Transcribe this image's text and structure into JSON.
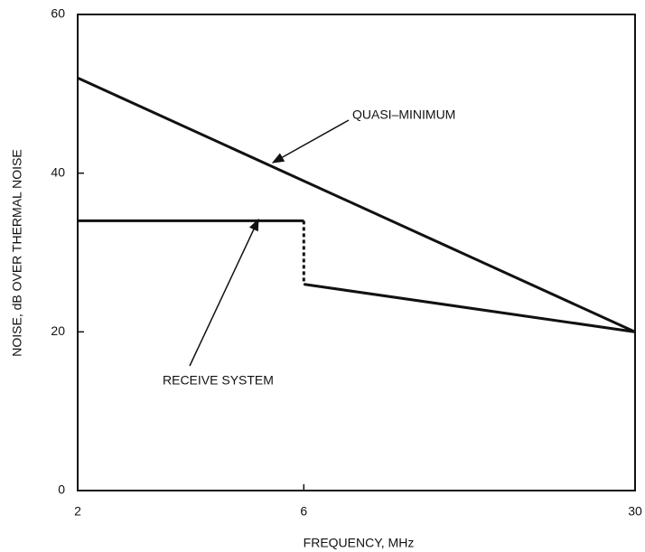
{
  "chart_data": {
    "type": "line",
    "xlabel": "FREQUENCY, MHz",
    "ylabel": "NOISE, dB OVER THERMAL NOISE",
    "xlim": [
      2,
      30
    ],
    "xticks": [
      2,
      6,
      30
    ],
    "xscale": "log",
    "ylim": [
      0,
      60
    ],
    "yticks": [
      0,
      20,
      40,
      60
    ],
    "grid": false,
    "series": [
      {
        "name": "QUASI–MINIMUM",
        "color": "#111111",
        "x": [
          2,
          30
        ],
        "values": [
          52,
          20
        ]
      },
      {
        "name": "RECEIVE SYSTEM",
        "color": "#111111",
        "x": [
          2,
          6,
          6,
          30
        ],
        "values": [
          34,
          34,
          26,
          20
        ],
        "dashed_segment": 1
      }
    ]
  }
}
